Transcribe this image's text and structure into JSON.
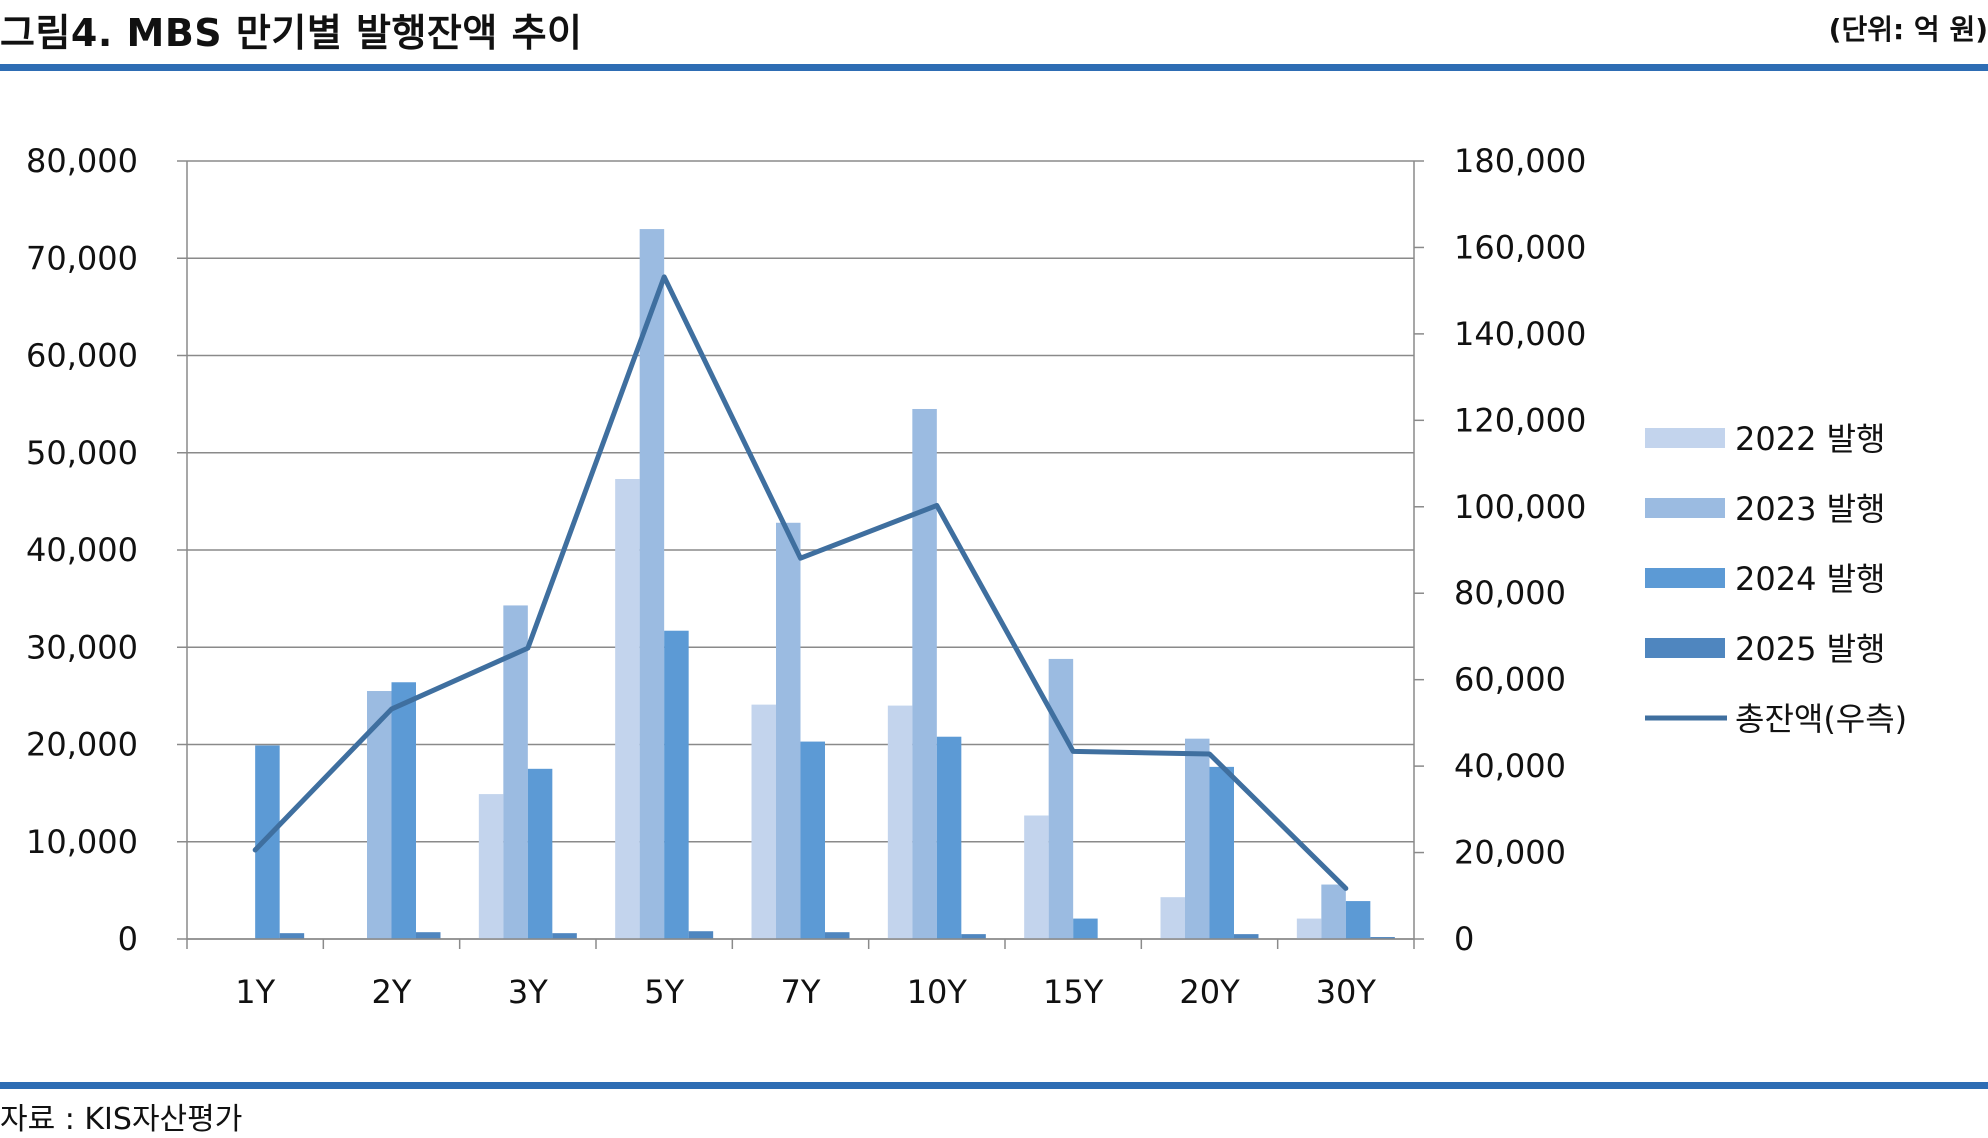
{
  "header": {
    "title": "그림4. MBS 만기별 발행잔액 추이",
    "unit": "(단위: 억 원)"
  },
  "footer": {
    "source": "자료 : KIS자산평가"
  },
  "chart_data": {
    "type": "bar",
    "categories": [
      "1Y",
      "2Y",
      "3Y",
      "5Y",
      "7Y",
      "10Y",
      "15Y",
      "20Y",
      "30Y"
    ],
    "series": [
      {
        "name": "2022 발행",
        "type": "bar",
        "axis": "left",
        "color": "#c3d4ed",
        "values": [
          0,
          0,
          14900,
          47300,
          24100,
          24000,
          12700,
          4300,
          2100
        ]
      },
      {
        "name": "2023 발행",
        "type": "bar",
        "axis": "left",
        "color": "#9bbbe1",
        "values": [
          0,
          25500,
          34300,
          73000,
          42800,
          54500,
          28800,
          20600,
          5600
        ]
      },
      {
        "name": "2024 발행",
        "type": "bar",
        "axis": "left",
        "color": "#5c9ad5",
        "values": [
          19900,
          26400,
          17500,
          31700,
          20300,
          20800,
          2100,
          17700,
          3900
        ]
      },
      {
        "name": "2025 발행",
        "type": "bar",
        "axis": "left",
        "color": "#4f86bf",
        "values": [
          600,
          700,
          600,
          800,
          700,
          500,
          0,
          500,
          200
        ]
      },
      {
        "name": "총잔액(우측)",
        "type": "line",
        "axis": "right",
        "color": "#3f6f9f",
        "values": [
          20600,
          53200,
          67300,
          153200,
          88100,
          100300,
          43400,
          42800,
          11700
        ]
      }
    ],
    "y_left": {
      "min": 0,
      "max": 80000,
      "step": 10000,
      "tick_labels": [
        "0",
        "10,000",
        "20,000",
        "30,000",
        "40,000",
        "50,000",
        "60,000",
        "70,000",
        "80,000"
      ]
    },
    "y_right": {
      "min": 0,
      "max": 180000,
      "step": 20000,
      "tick_labels": [
        "0",
        "20,000",
        "40,000",
        "60,000",
        "80,000",
        "100,000",
        "120,000",
        "140,000",
        "160,000",
        "180,000"
      ]
    },
    "grid": true,
    "legend_position": "right"
  }
}
